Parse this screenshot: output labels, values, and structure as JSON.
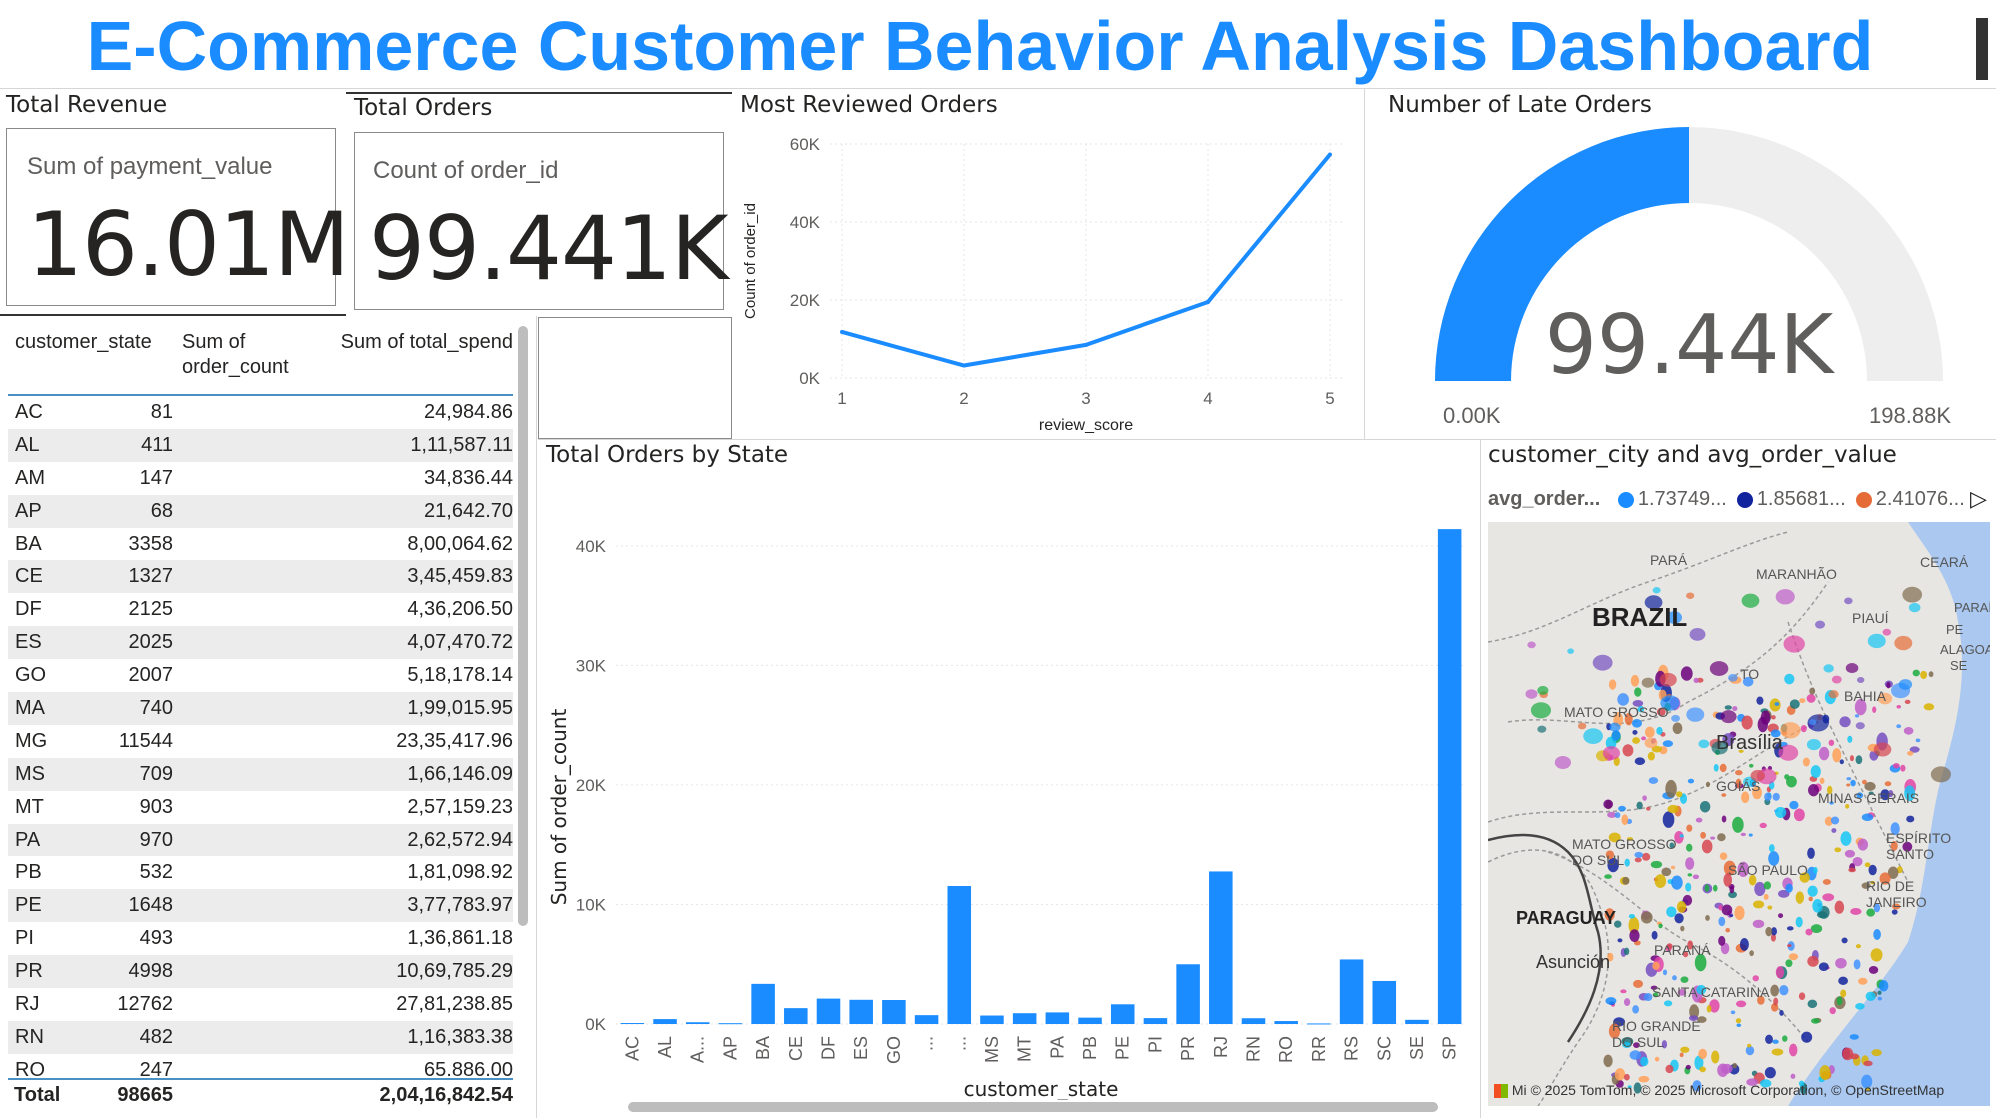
{
  "dashboard": {
    "title": "E-Commerce Customer Behavior Analysis Dashboard"
  },
  "cards": {
    "revenue": {
      "title": "Total Revenue",
      "label": "Sum of payment_value",
      "value": "16.01M"
    },
    "orders": {
      "title": "Total Orders",
      "label": "Count of order_id",
      "value": "99.441K"
    }
  },
  "table": {
    "headers": [
      "customer_state",
      "Sum of order_count",
      "Sum of total_spend"
    ],
    "header_lines": {
      "col2a": "Sum of",
      "col2b": "order_count"
    },
    "rows": [
      [
        "AC",
        "81",
        "24,984.86"
      ],
      [
        "AL",
        "411",
        "1,11,587.11"
      ],
      [
        "AM",
        "147",
        "34,836.44"
      ],
      [
        "AP",
        "68",
        "21,642.70"
      ],
      [
        "BA",
        "3358",
        "8,00,064.62"
      ],
      [
        "CE",
        "1327",
        "3,45,459.83"
      ],
      [
        "DF",
        "2125",
        "4,36,206.50"
      ],
      [
        "ES",
        "2025",
        "4,07,470.72"
      ],
      [
        "GO",
        "2007",
        "5,18,178.14"
      ],
      [
        "MA",
        "740",
        "1,99,015.95"
      ],
      [
        "MG",
        "11544",
        "23,35,417.96"
      ],
      [
        "MS",
        "709",
        "1,66,146.09"
      ],
      [
        "MT",
        "903",
        "2,57,159.23"
      ],
      [
        "PA",
        "970",
        "2,62,572.94"
      ],
      [
        "PB",
        "532",
        "1,81,098.92"
      ],
      [
        "PE",
        "1648",
        "3,77,783.97"
      ],
      [
        "PI",
        "493",
        "1,36,861.18"
      ],
      [
        "PR",
        "4998",
        "10,69,785.29"
      ],
      [
        "RJ",
        "12762",
        "27,81,238.85"
      ],
      [
        "RN",
        "482",
        "1,16,383.38"
      ],
      [
        "RO",
        "247",
        "65,886.00"
      ]
    ],
    "total": [
      "Total",
      "98665",
      "2,04,16,842.54"
    ]
  },
  "gauge": {
    "title": "Number of Late Orders",
    "value_label": "99.44K",
    "min_label": "0.00K",
    "max_label": "198.88K",
    "value": 99.44,
    "max": 198.88
  },
  "map": {
    "title": "customer_city and avg_order_value",
    "legend_title": "avg_order...",
    "legend_items": [
      {
        "label": "1.73749...",
        "color": "#1a8cff"
      },
      {
        "label": "1.85681...",
        "color": "#12239e"
      },
      {
        "label": "2.41076...",
        "color": "#e66c37"
      }
    ],
    "labels": [
      "PARÁ",
      "MARANHÃO",
      "CEARÁ",
      "BRAZIL",
      "PIAUÍ",
      "PARAÍBA",
      "PE",
      "ALAGOAS",
      "SE",
      "TO",
      "BAHIA",
      "MATO GROSSO",
      "Brasília",
      "GOIÁS",
      "MINAS GERAIS",
      "ESPÍRITO SANTO",
      "MATO GROSSO DO SUL",
      "RIO DE JANEIRO",
      "PARAGUAY",
      "SÃO PAULO",
      "PARANÁ",
      "Asunción",
      "SANTA CATARINA",
      "RIO GRANDE DO SUL"
    ],
    "attribution": "© 2025 TomTom, © 2025 Microsoft Corporation, © OpenStreetMap",
    "ms_label": "Mi"
  },
  "chart_data": [
    {
      "type": "line",
      "title": "Most Reviewed Orders",
      "xlabel": "review_score",
      "ylabel": "Count of order_id",
      "x": [
        1,
        2,
        3,
        4,
        5
      ],
      "values": [
        11800,
        3200,
        8500,
        19500,
        57300
      ],
      "ylim": [
        0,
        60000
      ],
      "yticks": [
        "0K",
        "20K",
        "40K",
        "60K"
      ],
      "xticks": [
        "1",
        "2",
        "3",
        "4",
        "5"
      ],
      "color": "#1a8cff"
    },
    {
      "type": "bar",
      "title": "Total Orders by State",
      "xlabel": "customer_state",
      "ylabel": "Sum of order_count",
      "categories": [
        "AC",
        "AL",
        "A...",
        "AP",
        "BA",
        "CE",
        "DF",
        "ES",
        "GO",
        "...",
        "...",
        "MS",
        "MT",
        "PA",
        "PB",
        "PE",
        "PI",
        "PR",
        "RJ",
        "RN",
        "RO",
        "RR",
        "RS",
        "SC",
        "SE",
        "SP"
      ],
      "values": [
        81,
        411,
        147,
        68,
        3358,
        1327,
        2125,
        2025,
        2007,
        740,
        11544,
        709,
        903,
        970,
        532,
        1648,
        493,
        4998,
        12762,
        482,
        247,
        46,
        5400,
        3600,
        350,
        41400
      ],
      "ylim": [
        0,
        43000
      ],
      "yticks": [
        "0K",
        "10K",
        "20K",
        "30K",
        "40K"
      ],
      "color": "#1a8cff"
    }
  ]
}
